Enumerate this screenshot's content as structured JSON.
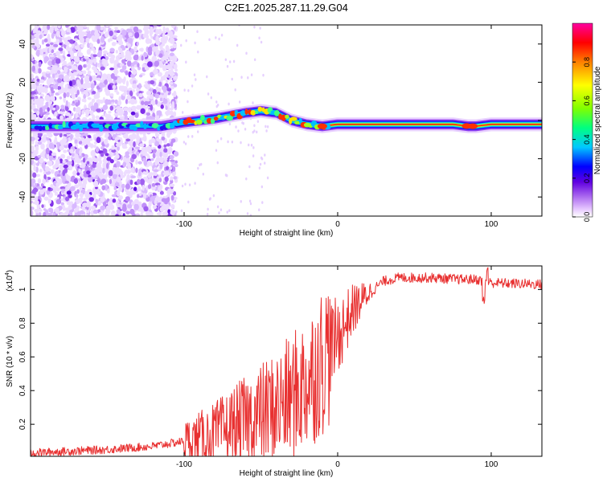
{
  "title": "C2E1.2025.287.11.29.G04",
  "chart_data": [
    {
      "type": "heatmap",
      "xlabel": "Height of straight line (km)",
      "ylabel": "Frequency (Hz)",
      "xlim": [
        -200,
        133
      ],
      "ylim": [
        -50,
        50
      ],
      "xticks": [
        -100,
        0,
        100
      ],
      "yticks": [
        -40,
        -20,
        0,
        20,
        40
      ],
      "colorbar": {
        "label": "Normalized spectral amplitude",
        "range": [
          0,
          1
        ],
        "ticks": [
          0.0,
          0.2,
          0.4,
          0.6,
          0.8
        ],
        "tick_labels": [
          "0.0",
          "0.2",
          "0.4",
          "0.6",
          "0.8"
        ],
        "colors": [
          "#ffffff",
          "#e6c8ff",
          "#a050f0",
          "#6000e0",
          "#0000ff",
          "#00c8ff",
          "#00ff80",
          "#80ff00",
          "#ffff00",
          "#ff8000",
          "#ff0000",
          "#ff00a0"
        ]
      },
      "ridge": {
        "x": [
          -200,
          -160,
          -130,
          -115,
          -100,
          -80,
          -60,
          -50,
          -40,
          -30,
          -20,
          -10,
          0,
          20,
          50,
          75,
          85,
          90,
          100,
          133
        ],
        "y": [
          -3,
          -3,
          -3,
          -3,
          -1,
          1,
          4,
          5,
          4,
          0,
          -2,
          -3,
          -2,
          -2,
          -2,
          -2,
          -3,
          -3,
          -2,
          -2
        ]
      },
      "noise_region_xmax": -105
    },
    {
      "type": "line",
      "xlabel": "Height of straight line (km)",
      "ylabel": "SNR (10 * v/v)",
      "scale_label": "(x10",
      "scale_exp": "4",
      "scale_close": ")",
      "xlim": [
        -200,
        133
      ],
      "ylim": [
        0.01,
        1.14
      ],
      "xticks": [
        -100,
        0,
        100
      ],
      "yticks": [
        0.2,
        0.4,
        0.6,
        0.8,
        1.0
      ],
      "ytick_labels": [
        "0.2",
        "0.4",
        "0.6",
        "0.8",
        "1"
      ],
      "series": [
        {
          "name": "SNR",
          "color": "#e83030",
          "x": [
            -200,
            -150,
            -120,
            -100,
            -90,
            -80,
            -70,
            -60,
            -50,
            -40,
            -30,
            -20,
            -10,
            0,
            10,
            20,
            30,
            40,
            60,
            80,
            90,
            95,
            100,
            133
          ],
          "y": [
            0.03,
            0.05,
            0.07,
            0.1,
            0.12,
            0.14,
            0.18,
            0.22,
            0.26,
            0.3,
            0.36,
            0.45,
            0.58,
            0.72,
            0.88,
            0.98,
            1.05,
            1.07,
            1.07,
            1.06,
            1.06,
            1.05,
            1.04,
            1.03
          ]
        }
      ]
    }
  ]
}
